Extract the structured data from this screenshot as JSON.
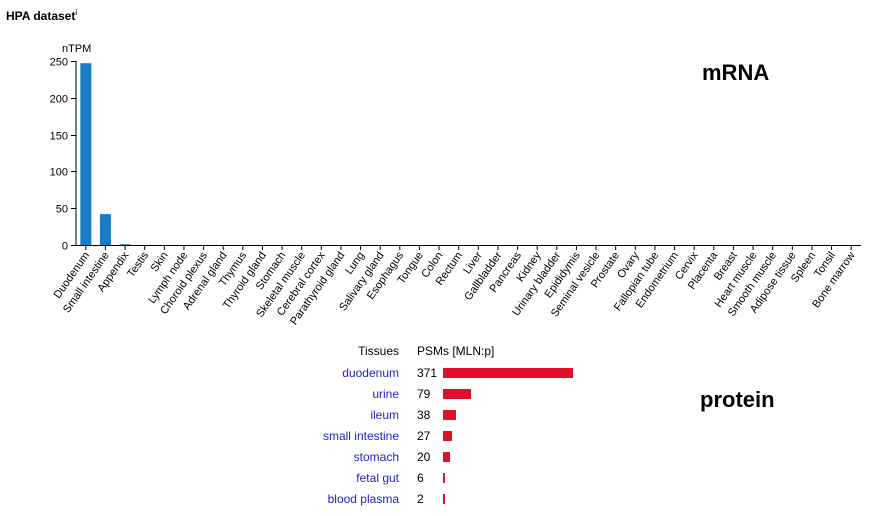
{
  "header": {
    "title": "HPA dataset",
    "info_mark": "i"
  },
  "labels": {
    "mrna": "mRNA",
    "protein": "protein"
  },
  "chart_data": [
    {
      "type": "bar",
      "title": "",
      "ylabel": "nTPM",
      "ylim": [
        0,
        250
      ],
      "yticks": [
        0,
        50,
        100,
        150,
        200,
        250
      ],
      "color": "#1a7ac4",
      "categories": [
        "Duodenum",
        "Small intestine",
        "Appendix",
        "Testis",
        "Skin",
        "Lymph node",
        "Choroid plexus",
        "Adrenal gland",
        "Thymus",
        "Thyroid gland",
        "Stomach",
        "Skeletal muscle",
        "Cerebral cortex",
        "Parathyroid gland",
        "Lung",
        "Salivary gland",
        "Esophagus",
        "Tongue",
        "Colon",
        "Rectum",
        "Liver",
        "Gallbladder",
        "Pancreas",
        "Kidney",
        "Urinary bladder",
        "Epididymis",
        "Seminal vesicle",
        "Prostate",
        "Ovary",
        "Fallopian tube",
        "Endometrium",
        "Cervix",
        "Placenta",
        "Breast",
        "Heart muscle",
        "Smooth muscle",
        "Adipose tissue",
        "Spleen",
        "Tonsil",
        "Bone marrow"
      ],
      "values": [
        247,
        42,
        1,
        0,
        0,
        0,
        0,
        0,
        0,
        0,
        0,
        0,
        0,
        0,
        0,
        0,
        0,
        0,
        0,
        0,
        0,
        0,
        0,
        0,
        0,
        0,
        0,
        0,
        0,
        0,
        0,
        0,
        0,
        0,
        0,
        0,
        0,
        0,
        0,
        0
      ]
    },
    {
      "type": "bar",
      "orientation": "horizontal",
      "col_tissues": "Tissues",
      "col_psms": "PSMs [MLN:p]",
      "color": "#e0102a",
      "categories": [
        "duodenum",
        "urine",
        "ileum",
        "small intestine",
        "stomach",
        "fetal gut",
        "blood plasma"
      ],
      "values": [
        371,
        79,
        38,
        27,
        20,
        6,
        2
      ]
    }
  ]
}
